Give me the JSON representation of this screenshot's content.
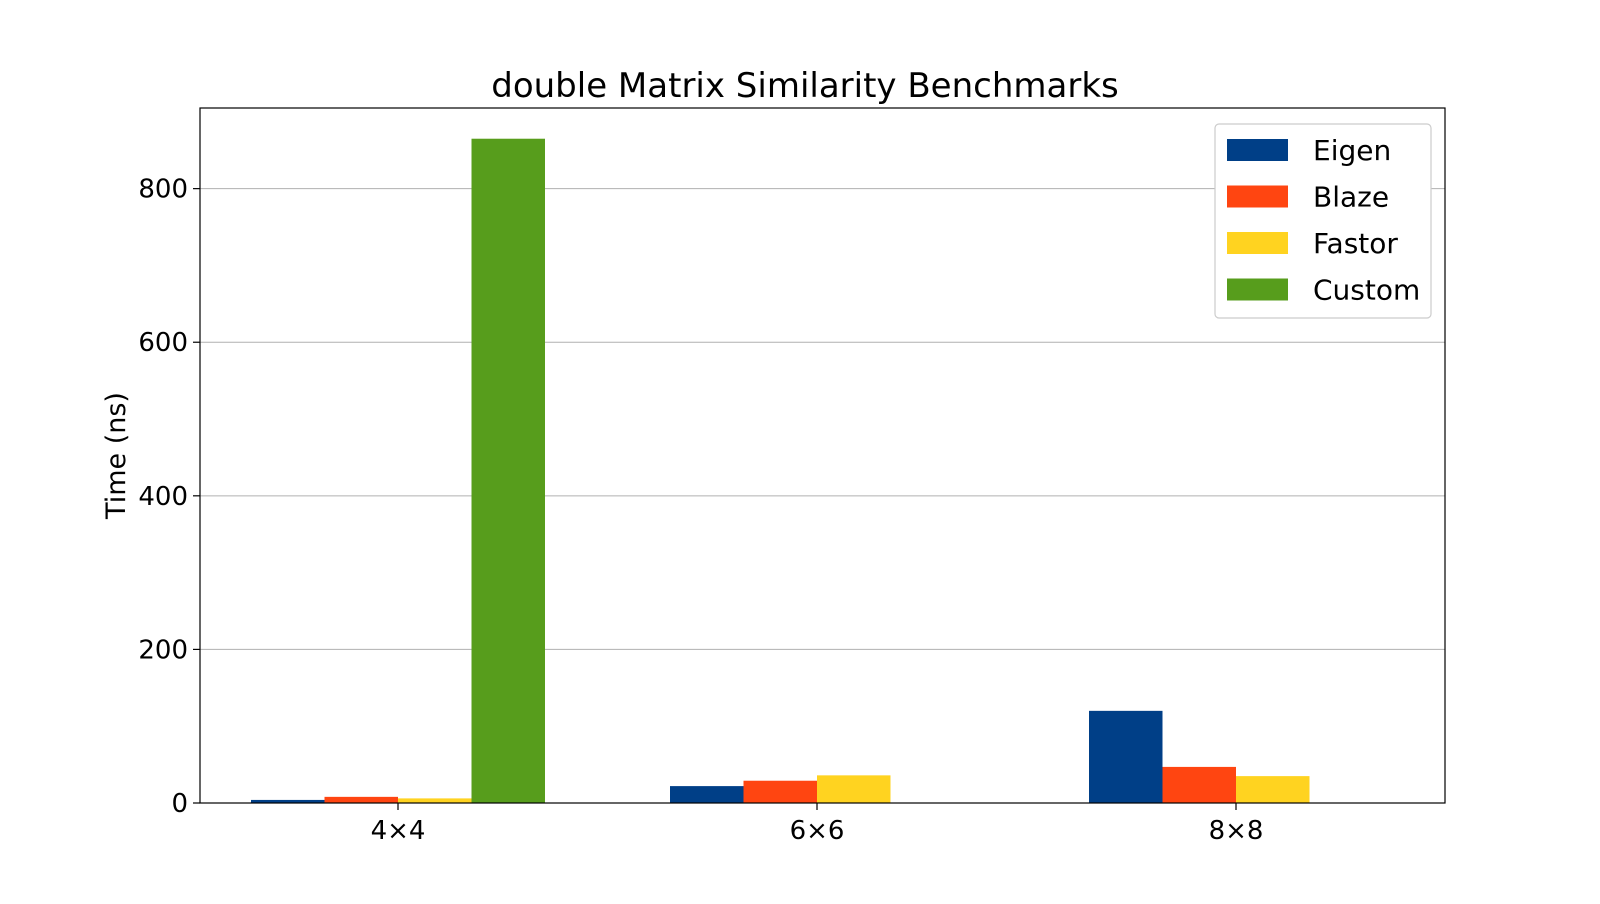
{
  "chart_data": {
    "type": "bar",
    "title": "double Matrix Similarity Benchmarks",
    "xlabel": "",
    "ylabel": "Time (ns)",
    "categories": [
      "4×4",
      "6×6",
      "8×8"
    ],
    "series": [
      {
        "name": "Eigen",
        "color": "#003f87",
        "values": [
          4,
          22,
          120
        ]
      },
      {
        "name": "Blaze",
        "color": "#ff4511",
        "values": [
          8,
          29,
          47
        ]
      },
      {
        "name": "Fastor",
        "color": "#ffd320",
        "values": [
          6,
          36,
          35
        ]
      },
      {
        "name": "Custom",
        "color": "#579d1c",
        "values": [
          865,
          null,
          null
        ]
      }
    ],
    "ylim": [
      0,
      905
    ],
    "yticks": [
      0,
      200,
      400,
      600,
      800
    ],
    "grid": "y",
    "legend": "top-right"
  }
}
